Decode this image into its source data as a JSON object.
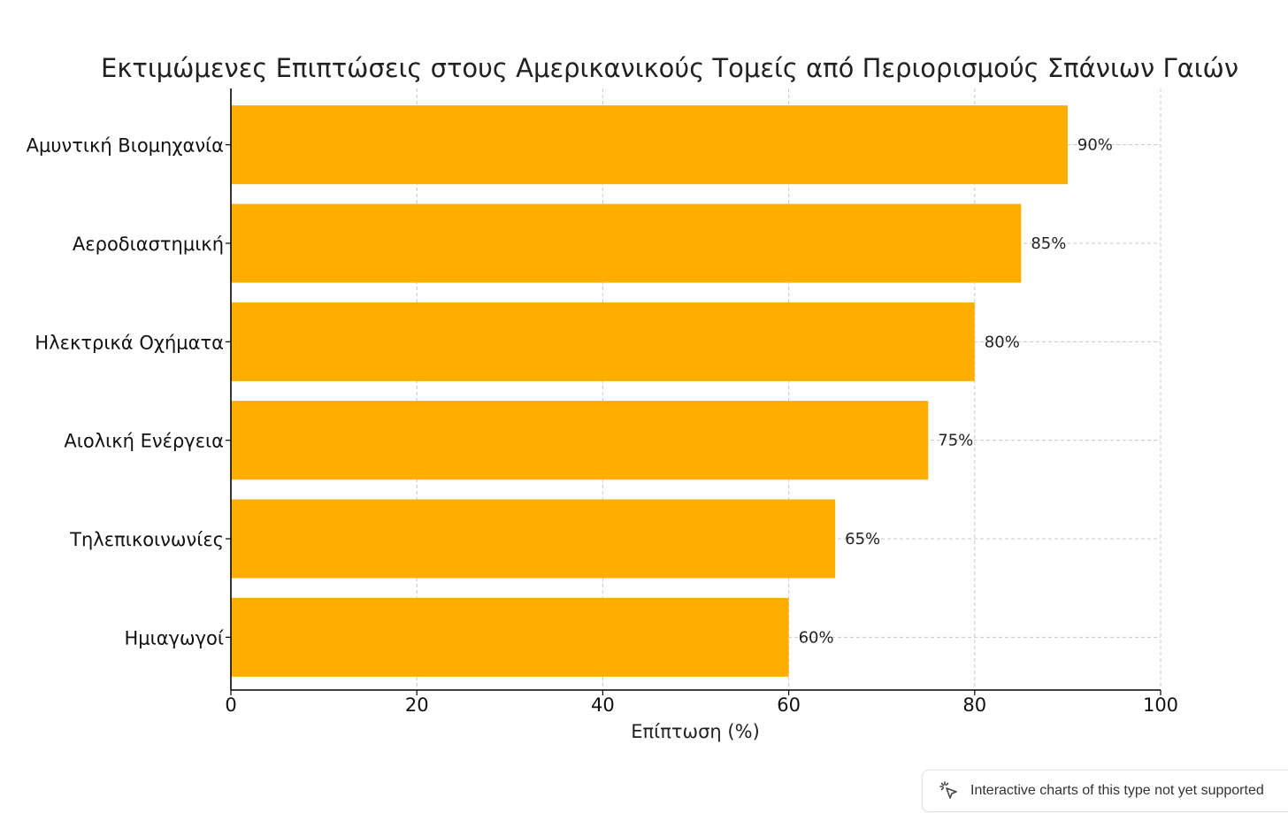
{
  "chart_data": {
    "type": "bar",
    "orientation": "horizontal",
    "title": "Εκτιμώμενες Επιπτώσεις στους Αμερικανικούς Τομείς από Περιορισμούς Σπάνιων Γαιών",
    "xlabel": "Επίπτωση (%)",
    "ylabel": "",
    "categories": [
      "Αμυντική Βιομηχανία",
      "Αεροδιαστημική",
      "Ηλεκτρικά Οχήματα",
      "Αιολική Ενέργεια",
      "Τηλεπικοινωνίες",
      "Ημιαγωγοί"
    ],
    "values": [
      90,
      85,
      80,
      75,
      65,
      60
    ],
    "value_labels": [
      "90%",
      "85%",
      "80%",
      "75%",
      "65%",
      "60%"
    ],
    "xlim": [
      0,
      100
    ],
    "xticks": [
      0,
      20,
      40,
      60,
      80,
      100
    ],
    "xtick_labels": [
      "0",
      "20",
      "40",
      "60",
      "80",
      "100"
    ],
    "grid": true,
    "bar_color": "#ffae00"
  },
  "notice": {
    "text": "Interactive charts of this type not yet supported",
    "icon": "sparkle-cursor-icon"
  }
}
